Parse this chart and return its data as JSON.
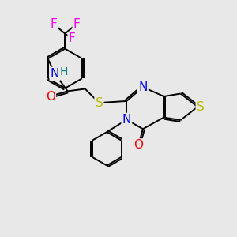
{
  "background_color": "#e8e8e8",
  "bond_color": "#000000",
  "atom_colors": {
    "F": "#ee00ee",
    "N": "#0000ff",
    "O": "#ff0000",
    "S": "#bbbb00",
    "H": "#008080",
    "C": "#000000"
  },
  "font_size": 11,
  "font_size_h": 10,
  "figsize": [
    3.0,
    3.0
  ],
  "dpi": 100
}
